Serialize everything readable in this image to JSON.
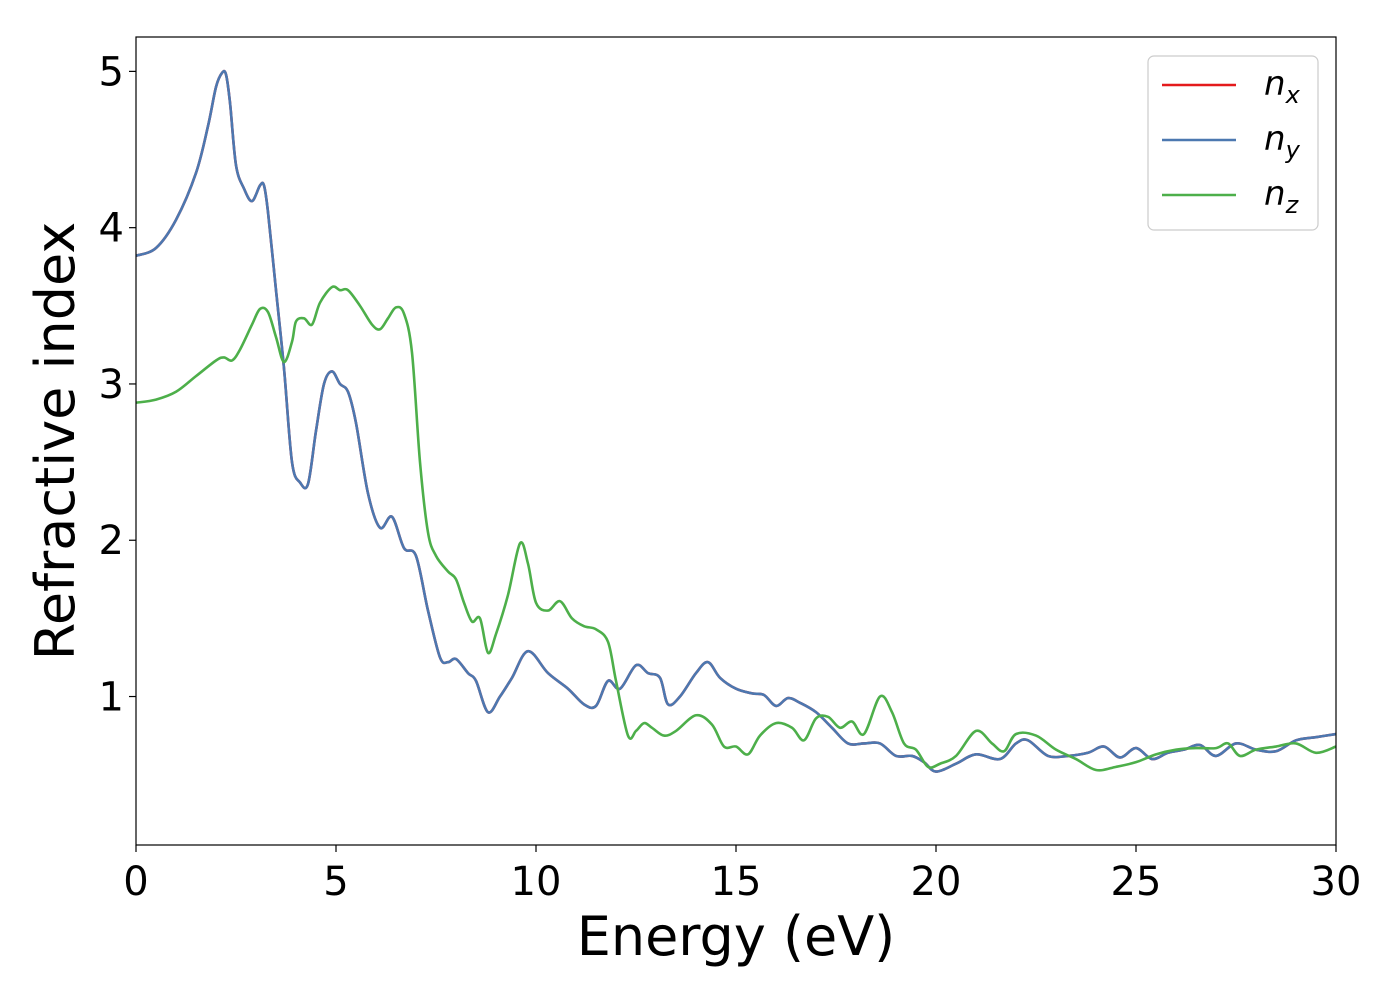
{
  "chart_data": {
    "type": "line",
    "xlabel": "Energy (eV)",
    "ylabel": "Refractive index",
    "xlim": [
      0,
      30
    ],
    "ylim": [
      0.05,
      5.22
    ],
    "xticks": [
      "0",
      "5",
      "10",
      "15",
      "20",
      "25",
      "30"
    ],
    "yticks": [
      "1",
      "2",
      "3",
      "4",
      "5"
    ],
    "grid": false,
    "legend_position": "top-right",
    "series": [
      {
        "name": "n",
        "subscript": "x",
        "color": "#e41a1c",
        "x": [
          0,
          0.5,
          1.0,
          1.5,
          1.8,
          2.0,
          2.15,
          2.25,
          2.35,
          2.5,
          2.7,
          2.9,
          3.1,
          3.2,
          3.3,
          3.5,
          3.7,
          3.9,
          4.1,
          4.3,
          4.5,
          4.7,
          4.9,
          5.1,
          5.3,
          5.5,
          5.8,
          6.1,
          6.4,
          6.7,
          7.0,
          7.3,
          7.6,
          7.8,
          8.0,
          8.3,
          8.5,
          8.8,
          9.1,
          9.4,
          9.8,
          10.3,
          10.8,
          11.2,
          11.5,
          11.8,
          12.1,
          12.5,
          12.8,
          13.1,
          13.3,
          13.6,
          14.0,
          14.3,
          14.6,
          15.0,
          15.4,
          15.7,
          16.0,
          16.3,
          16.6,
          17.0,
          17.4,
          17.8,
          18.2,
          18.6,
          19.0,
          19.4,
          19.7,
          20.0,
          20.5,
          21.0,
          21.6,
          22.0,
          22.3,
          22.8,
          23.3,
          23.8,
          24.2,
          24.6,
          25.0,
          25.4,
          25.8,
          26.2,
          26.6,
          27.0,
          27.5,
          28.0,
          28.5,
          29.0,
          29.5,
          30.0
        ],
        "y": [
          3.82,
          3.87,
          4.05,
          4.35,
          4.65,
          4.9,
          4.99,
          4.98,
          4.8,
          4.4,
          4.25,
          4.17,
          4.27,
          4.27,
          4.1,
          3.6,
          3.1,
          2.5,
          2.37,
          2.36,
          2.7,
          3.0,
          3.08,
          3.0,
          2.95,
          2.75,
          2.3,
          2.08,
          2.15,
          1.95,
          1.9,
          1.55,
          1.25,
          1.22,
          1.24,
          1.15,
          1.1,
          0.9,
          1.0,
          1.12,
          1.29,
          1.15,
          1.05,
          0.95,
          0.94,
          1.1,
          1.05,
          1.2,
          1.15,
          1.12,
          0.95,
          1.0,
          1.15,
          1.22,
          1.12,
          1.05,
          1.02,
          1.01,
          0.94,
          0.99,
          0.96,
          0.9,
          0.8,
          0.7,
          0.7,
          0.7,
          0.62,
          0.62,
          0.58,
          0.52,
          0.57,
          0.63,
          0.6,
          0.7,
          0.72,
          0.62,
          0.62,
          0.64,
          0.68,
          0.61,
          0.67,
          0.6,
          0.64,
          0.66,
          0.69,
          0.62,
          0.7,
          0.66,
          0.65,
          0.72,
          0.74,
          0.76
        ]
      },
      {
        "name": "n",
        "subscript": "y",
        "color": "#4c78b0",
        "x": [
          0,
          0.5,
          1.0,
          1.5,
          1.8,
          2.0,
          2.15,
          2.25,
          2.35,
          2.5,
          2.7,
          2.9,
          3.1,
          3.2,
          3.3,
          3.5,
          3.7,
          3.9,
          4.1,
          4.3,
          4.5,
          4.7,
          4.9,
          5.1,
          5.3,
          5.5,
          5.8,
          6.1,
          6.4,
          6.7,
          7.0,
          7.3,
          7.6,
          7.8,
          8.0,
          8.3,
          8.5,
          8.8,
          9.1,
          9.4,
          9.8,
          10.3,
          10.8,
          11.2,
          11.5,
          11.8,
          12.1,
          12.5,
          12.8,
          13.1,
          13.3,
          13.6,
          14.0,
          14.3,
          14.6,
          15.0,
          15.4,
          15.7,
          16.0,
          16.3,
          16.6,
          17.0,
          17.4,
          17.8,
          18.2,
          18.6,
          19.0,
          19.4,
          19.7,
          20.0,
          20.5,
          21.0,
          21.6,
          22.0,
          22.3,
          22.8,
          23.3,
          23.8,
          24.2,
          24.6,
          25.0,
          25.4,
          25.8,
          26.2,
          26.6,
          27.0,
          27.5,
          28.0,
          28.5,
          29.0,
          29.5,
          30.0
        ],
        "y": [
          3.82,
          3.87,
          4.05,
          4.35,
          4.65,
          4.9,
          4.99,
          4.98,
          4.8,
          4.4,
          4.25,
          4.17,
          4.27,
          4.27,
          4.1,
          3.6,
          3.1,
          2.5,
          2.37,
          2.36,
          2.7,
          3.0,
          3.08,
          3.0,
          2.95,
          2.75,
          2.3,
          2.08,
          2.15,
          1.95,
          1.9,
          1.55,
          1.25,
          1.22,
          1.24,
          1.15,
          1.1,
          0.9,
          1.0,
          1.12,
          1.29,
          1.15,
          1.05,
          0.95,
          0.94,
          1.1,
          1.05,
          1.2,
          1.15,
          1.12,
          0.95,
          1.0,
          1.15,
          1.22,
          1.12,
          1.05,
          1.02,
          1.01,
          0.94,
          0.99,
          0.96,
          0.9,
          0.8,
          0.7,
          0.7,
          0.7,
          0.62,
          0.62,
          0.58,
          0.52,
          0.57,
          0.63,
          0.6,
          0.7,
          0.72,
          0.62,
          0.62,
          0.64,
          0.68,
          0.61,
          0.67,
          0.6,
          0.64,
          0.66,
          0.69,
          0.62,
          0.7,
          0.66,
          0.65,
          0.72,
          0.74,
          0.76
        ]
      },
      {
        "name": "n",
        "subscript": "z",
        "color": "#4daf4a",
        "x": [
          0,
          0.5,
          1.0,
          1.5,
          2.0,
          2.2,
          2.4,
          2.6,
          2.9,
          3.1,
          3.3,
          3.5,
          3.7,
          3.9,
          4.0,
          4.2,
          4.4,
          4.6,
          4.9,
          5.1,
          5.3,
          5.6,
          5.9,
          6.1,
          6.3,
          6.5,
          6.7,
          6.9,
          7.1,
          7.3,
          7.5,
          7.8,
          8.0,
          8.2,
          8.4,
          8.6,
          8.8,
          9.0,
          9.3,
          9.6,
          9.8,
          10.0,
          10.3,
          10.6,
          10.9,
          11.2,
          11.5,
          11.8,
          12.0,
          12.3,
          12.5,
          12.7,
          12.9,
          13.2,
          13.5,
          14.0,
          14.4,
          14.7,
          15.0,
          15.3,
          15.6,
          16.0,
          16.4,
          16.7,
          17.0,
          17.3,
          17.6,
          17.9,
          18.2,
          18.6,
          18.9,
          19.2,
          19.5,
          19.8,
          20.1,
          20.5,
          21.0,
          21.4,
          21.7,
          22.0,
          22.5,
          23.0,
          23.5,
          24.0,
          24.5,
          25.0,
          25.5,
          26.0,
          26.5,
          27.0,
          27.3,
          27.6,
          28.0,
          28.5,
          29.0,
          29.5,
          30.0
        ],
        "y": [
          2.88,
          2.9,
          2.95,
          3.05,
          3.15,
          3.17,
          3.15,
          3.22,
          3.38,
          3.48,
          3.46,
          3.3,
          3.14,
          3.27,
          3.4,
          3.42,
          3.38,
          3.52,
          3.62,
          3.6,
          3.6,
          3.5,
          3.38,
          3.35,
          3.42,
          3.49,
          3.45,
          3.2,
          2.5,
          2.05,
          1.9,
          1.8,
          1.75,
          1.6,
          1.48,
          1.5,
          1.28,
          1.4,
          1.65,
          1.98,
          1.85,
          1.6,
          1.55,
          1.61,
          1.5,
          1.45,
          1.43,
          1.35,
          1.1,
          0.75,
          0.78,
          0.83,
          0.8,
          0.75,
          0.78,
          0.88,
          0.82,
          0.68,
          0.68,
          0.63,
          0.75,
          0.83,
          0.8,
          0.72,
          0.86,
          0.87,
          0.8,
          0.84,
          0.76,
          1.0,
          0.9,
          0.7,
          0.66,
          0.55,
          0.57,
          0.62,
          0.78,
          0.7,
          0.65,
          0.76,
          0.75,
          0.66,
          0.6,
          0.53,
          0.55,
          0.58,
          0.63,
          0.66,
          0.67,
          0.67,
          0.7,
          0.62,
          0.66,
          0.68,
          0.7,
          0.64,
          0.68
        ]
      }
    ]
  }
}
